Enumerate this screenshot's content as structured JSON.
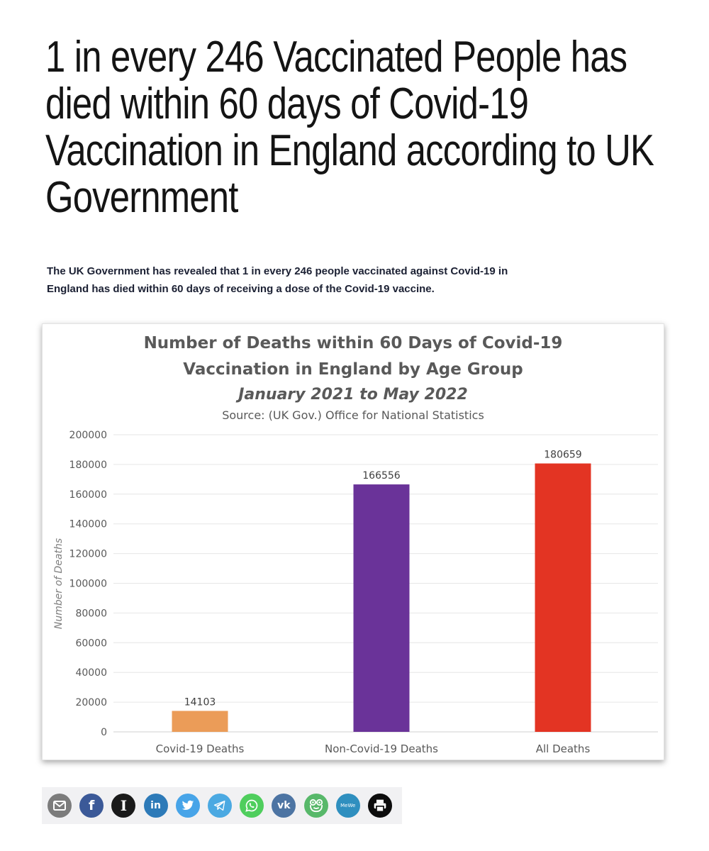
{
  "article": {
    "headline": "1 in every 246 Vaccinated People has died within 60 days of Covid-19 Vaccination in England according to UK Government",
    "lead": "The UK Government has revealed that 1 in every 246 people vaccinated against Covid-19 in England has died within 60 days of receiving a dose of the Covid-19 vaccine."
  },
  "chart_data": {
    "type": "bar",
    "title_line1": "Number of Deaths within 60 Days of Covid-19",
    "title_line2": "Vaccination in England by Age Group",
    "subtitle": "January 2021 to May 2022",
    "source": "Source: (UK Gov.) Office for National Statistics",
    "ylabel": "Number of Deaths",
    "xlabel": "",
    "ylim": [
      0,
      200000
    ],
    "yticks": [
      0,
      20000,
      40000,
      60000,
      80000,
      100000,
      120000,
      140000,
      160000,
      180000,
      200000
    ],
    "categories": [
      "Covid-19 Deaths",
      "Non-Covid-19 Deaths",
      "All Deaths"
    ],
    "values": [
      14103,
      166556,
      180659
    ],
    "colors": [
      "#eb9c58",
      "#6a3399",
      "#e33423"
    ],
    "grid": true,
    "legend": "none"
  },
  "share": {
    "buttons": [
      {
        "name": "email",
        "icon": "envelope-icon",
        "color": "#7c7c7c"
      },
      {
        "name": "facebook",
        "icon": "facebook-icon",
        "color": "#3b5998",
        "glyph": "f"
      },
      {
        "name": "instapaper",
        "icon": "instapaper-icon",
        "color": "#1a1a1a",
        "glyph": "I"
      },
      {
        "name": "linkedin",
        "icon": "linkedin-icon",
        "color": "#2d7ab8",
        "glyph": "in"
      },
      {
        "name": "twitter",
        "icon": "twitter-bird-icon",
        "color": "#47a4e8"
      },
      {
        "name": "telegram",
        "icon": "telegram-plane-icon",
        "color": "#4ba9e2"
      },
      {
        "name": "whatsapp",
        "icon": "whatsapp-icon",
        "color": "#4fce5d"
      },
      {
        "name": "vk",
        "icon": "vk-icon",
        "color": "#4d74a3",
        "glyph": "vk"
      },
      {
        "name": "parler",
        "icon": "frog-icon",
        "color": "#58b86a"
      },
      {
        "name": "mewe",
        "icon": "mewe-icon",
        "color": "#2f8fbf",
        "glyph": "MeWe"
      },
      {
        "name": "print",
        "icon": "printer-icon",
        "color": "#0d0d0d"
      }
    ]
  }
}
